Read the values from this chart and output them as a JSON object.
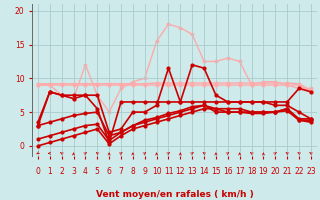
{
  "bg_color": "#ceeaea",
  "grid_color": "#aacccc",
  "xlabel": "Vent moyen/en rafales ( km/h )",
  "xlabel_color": "#cc0000",
  "ylabel_color": "#cc0000",
  "xlim": [
    -0.5,
    23.5
  ],
  "ylim": [
    -1.5,
    21
  ],
  "yticks": [
    0,
    5,
    10,
    15,
    20
  ],
  "xticks": [
    0,
    1,
    2,
    3,
    4,
    5,
    6,
    7,
    8,
    9,
    10,
    11,
    12,
    13,
    14,
    15,
    16,
    17,
    18,
    19,
    20,
    21,
    22,
    23
  ],
  "lines": [
    {
      "x": [
        0,
        1,
        2,
        3,
        4,
        5,
        6,
        7,
        8,
        9,
        10,
        11,
        12,
        13,
        14,
        15,
        16,
        17,
        18,
        19,
        20,
        21,
        22,
        23
      ],
      "y": [
        9.2,
        9.2,
        9.2,
        9.2,
        9.2,
        9.2,
        9.2,
        9.2,
        9.2,
        9.2,
        9.3,
        9.3,
        9.3,
        9.3,
        9.3,
        9.3,
        9.3,
        9.3,
        9.3,
        9.3,
        9.3,
        9.3,
        9.2,
        8.2
      ],
      "color": "#ffaaaa",
      "lw": 1.0,
      "marker": "o",
      "ms": 1.8,
      "zorder": 2
    },
    {
      "x": [
        0,
        1,
        2,
        3,
        4,
        5,
        6,
        7,
        8,
        9,
        10,
        11,
        12,
        13,
        14,
        15,
        16,
        17,
        18,
        19,
        20,
        21,
        22,
        23
      ],
      "y": [
        9.0,
        9.0,
        9.0,
        9.0,
        9.0,
        9.0,
        9.0,
        9.0,
        9.0,
        9.0,
        9.0,
        9.0,
        9.0,
        9.0,
        9.0,
        9.0,
        9.0,
        9.0,
        9.0,
        9.0,
        9.0,
        9.0,
        9.0,
        8.0
      ],
      "color": "#ffaaaa",
      "lw": 1.0,
      "marker": "o",
      "ms": 1.8,
      "zorder": 2
    },
    {
      "x": [
        0,
        1,
        2,
        3,
        4,
        5,
        6,
        7,
        8,
        9,
        10,
        11,
        12,
        13,
        14,
        15,
        16,
        17,
        18,
        19,
        20,
        21,
        22,
        23
      ],
      "y": [
        9.0,
        9.0,
        7.5,
        7.0,
        12.0,
        7.5,
        5.0,
        8.5,
        9.5,
        10.0,
        15.5,
        18.0,
        17.5,
        16.5,
        12.5,
        12.5,
        13.0,
        12.5,
        9.0,
        9.5,
        9.5,
        9.0,
        8.5,
        8.5
      ],
      "color": "#ffaaaa",
      "lw": 1.0,
      "marker": "o",
      "ms": 1.8,
      "zorder": 1
    },
    {
      "x": [
        0,
        1,
        2,
        3,
        4,
        5,
        6,
        7,
        8,
        9,
        10,
        11,
        12,
        13,
        14,
        15,
        16,
        17,
        18,
        19,
        20,
        21,
        22,
        23
      ],
      "y": [
        3.0,
        8.0,
        7.5,
        7.5,
        7.5,
        5.5,
        0.5,
        6.5,
        6.5,
        6.5,
        6.5,
        6.5,
        6.5,
        6.5,
        6.5,
        6.5,
        6.5,
        6.5,
        6.5,
        6.5,
        6.5,
        6.5,
        8.5,
        8.0
      ],
      "color": "#cc0000",
      "lw": 1.2,
      "marker": "o",
      "ms": 2.0,
      "zorder": 3
    },
    {
      "x": [
        0,
        1,
        2,
        3,
        4,
        5,
        6,
        7,
        8,
        9,
        10,
        11,
        12,
        13,
        14,
        15,
        16,
        17,
        18,
        19,
        20,
        21,
        22,
        23
      ],
      "y": [
        3.5,
        8.0,
        7.5,
        7.0,
        7.5,
        7.5,
        2.0,
        2.5,
        5.0,
        5.0,
        6.0,
        11.5,
        6.5,
        12.0,
        11.5,
        7.5,
        6.5,
        6.5,
        6.5,
        6.5,
        6.0,
        6.0,
        5.0,
        4.0
      ],
      "color": "#cc0000",
      "lw": 1.2,
      "marker": "o",
      "ms": 2.0,
      "zorder": 3
    },
    {
      "x": [
        0,
        1,
        2,
        3,
        4,
        5,
        6,
        7,
        8,
        9,
        10,
        11,
        12,
        13,
        14,
        15,
        16,
        17,
        18,
        19,
        20,
        21,
        22,
        23
      ],
      "y": [
        0.0,
        0.5,
        1.0,
        1.5,
        2.0,
        2.5,
        0.3,
        1.5,
        2.5,
        3.0,
        3.5,
        4.0,
        4.5,
        5.0,
        5.5,
        5.5,
        5.0,
        5.0,
        5.0,
        5.0,
        5.0,
        5.5,
        4.0,
        4.0
      ],
      "color": "#cc0000",
      "lw": 1.2,
      "marker": "o",
      "ms": 2.0,
      "zorder": 3
    },
    {
      "x": [
        0,
        1,
        2,
        3,
        4,
        5,
        6,
        7,
        8,
        9,
        10,
        11,
        12,
        13,
        14,
        15,
        16,
        17,
        18,
        19,
        20,
        21,
        22,
        23
      ],
      "y": [
        3.0,
        3.5,
        4.0,
        4.5,
        4.8,
        5.0,
        1.5,
        2.0,
        3.0,
        3.8,
        4.2,
        4.8,
        5.2,
        5.8,
        6.0,
        5.5,
        5.5,
        5.5,
        5.0,
        5.0,
        5.0,
        5.5,
        3.8,
        3.5
      ],
      "color": "#cc0000",
      "lw": 1.2,
      "marker": "o",
      "ms": 2.0,
      "zorder": 3
    },
    {
      "x": [
        0,
        1,
        2,
        3,
        4,
        5,
        6,
        7,
        8,
        9,
        10,
        11,
        12,
        13,
        14,
        15,
        16,
        17,
        18,
        19,
        20,
        21,
        22,
        23
      ],
      "y": [
        1.0,
        1.5,
        2.0,
        2.5,
        3.0,
        3.2,
        0.8,
        2.0,
        3.0,
        3.5,
        4.0,
        4.5,
        5.0,
        5.5,
        6.0,
        5.0,
        5.0,
        5.0,
        4.8,
        4.8,
        5.0,
        5.2,
        3.8,
        3.8
      ],
      "color": "#cc0000",
      "lw": 1.2,
      "marker": "o",
      "ms": 2.0,
      "zorder": 3
    }
  ],
  "tick_fontsize": 5.5,
  "label_fontsize": 6.5
}
